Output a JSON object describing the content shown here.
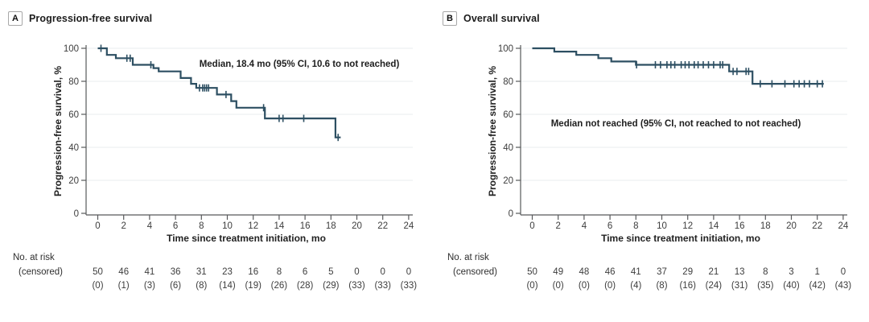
{
  "colors": {
    "curve": "#2d4f62",
    "axis": "#58595b",
    "grid": "#e9edef",
    "tick_text": "#3d3d3d",
    "title_text": "#1c1c1c"
  },
  "chart_data": [
    {
      "type": "line",
      "subtype": "kaplan-meier-step",
      "panel_label": "A",
      "title": "Progression-free survival",
      "ylabel": "Progression-free survival, %",
      "xlabel": "Time since treatment initiation, mo",
      "annotation": "Median, 18.4 mo (95% CI, 10.6 to not reached)",
      "risk_label": "No. at risk",
      "censored_label": "(censored)",
      "xlim": [
        0,
        24
      ],
      "ylim": [
        0,
        100
      ],
      "x_ticks": [
        0,
        2,
        4,
        6,
        8,
        10,
        12,
        14,
        16,
        18,
        20,
        22,
        24
      ],
      "y_ticks": [
        0,
        20,
        40,
        60,
        80,
        100
      ],
      "grid": true,
      "legend": "none",
      "steps": [
        [
          0,
          100
        ],
        [
          0.7,
          96
        ],
        [
          1.4,
          94
        ],
        [
          2.7,
          90
        ],
        [
          4.3,
          88
        ],
        [
          4.7,
          86
        ],
        [
          6.4,
          82
        ],
        [
          7.2,
          78.5
        ],
        [
          7.6,
          76
        ],
        [
          9.2,
          72
        ],
        [
          10.3,
          68
        ],
        [
          10.7,
          64
        ],
        [
          12.9,
          57.5
        ],
        [
          18.35,
          46
        ]
      ],
      "curve_end": 18.75,
      "censor_marks": [
        [
          0.25,
          100
        ],
        [
          2.25,
          94
        ],
        [
          2.5,
          94
        ],
        [
          4.1,
          90
        ],
        [
          7.85,
          76
        ],
        [
          8.1,
          76
        ],
        [
          8.25,
          76
        ],
        [
          8.4,
          76
        ],
        [
          8.55,
          76
        ],
        [
          9.9,
          72
        ],
        [
          12.8,
          64
        ],
        [
          14.0,
          57.5
        ],
        [
          14.3,
          57.5
        ],
        [
          15.9,
          57.5
        ],
        [
          18.55,
          46
        ]
      ],
      "at_risk": [
        50,
        46,
        41,
        36,
        31,
        23,
        16,
        8,
        6,
        5,
        0,
        0,
        0
      ],
      "censored": [
        "(0)",
        "(1)",
        "(3)",
        "(6)",
        "(8)",
        "(14)",
        "(19)",
        "(26)",
        "(28)",
        "(29)",
        "(33)",
        "(33)",
        "(33)"
      ]
    },
    {
      "type": "line",
      "subtype": "kaplan-meier-step",
      "panel_label": "B",
      "title": "Overall survival",
      "ylabel": "Progression-free survival, %",
      "xlabel": "Time since treatment initiation, mo",
      "annotation": "Median not reached (95% CI, not reached to not reached)",
      "risk_label": "No. at risk",
      "censored_label": "(censored)",
      "xlim": [
        0,
        24
      ],
      "ylim": [
        0,
        100
      ],
      "x_ticks": [
        0,
        2,
        4,
        6,
        8,
        10,
        12,
        14,
        16,
        18,
        20,
        22,
        24
      ],
      "y_ticks": [
        0,
        20,
        40,
        60,
        80,
        100
      ],
      "grid": true,
      "legend": "none",
      "steps": [
        [
          0,
          100
        ],
        [
          1.7,
          98
        ],
        [
          3.4,
          96
        ],
        [
          5.1,
          94
        ],
        [
          6.1,
          92
        ],
        [
          8.0,
          90
        ],
        [
          15.2,
          86
        ],
        [
          17.0,
          78.5
        ]
      ],
      "curve_end": 22.5,
      "censor_marks": [
        [
          8.05,
          90
        ],
        [
          9.5,
          90
        ],
        [
          9.9,
          90
        ],
        [
          10.4,
          90
        ],
        [
          10.7,
          90
        ],
        [
          11.0,
          90
        ],
        [
          11.5,
          90
        ],
        [
          11.8,
          90
        ],
        [
          12.1,
          90
        ],
        [
          12.5,
          90
        ],
        [
          12.8,
          90
        ],
        [
          13.2,
          90
        ],
        [
          13.6,
          90
        ],
        [
          14.0,
          90
        ],
        [
          14.5,
          90
        ],
        [
          14.7,
          90
        ],
        [
          15.5,
          86
        ],
        [
          15.8,
          86
        ],
        [
          16.5,
          86
        ],
        [
          16.7,
          86
        ],
        [
          17.6,
          78.5
        ],
        [
          18.5,
          78.5
        ],
        [
          19.5,
          78.5
        ],
        [
          20.2,
          78.5
        ],
        [
          20.6,
          78.5
        ],
        [
          21.0,
          78.5
        ],
        [
          21.4,
          78.5
        ],
        [
          22.0,
          78.5
        ],
        [
          22.4,
          78.5
        ]
      ],
      "at_risk": [
        50,
        49,
        48,
        46,
        41,
        37,
        29,
        21,
        13,
        8,
        3,
        1,
        0
      ],
      "censored": [
        "(0)",
        "(0)",
        "(0)",
        "(0)",
        "(4)",
        "(8)",
        "(16)",
        "(24)",
        "(31)",
        "(35)",
        "(40)",
        "(42)",
        "(43)"
      ]
    }
  ]
}
